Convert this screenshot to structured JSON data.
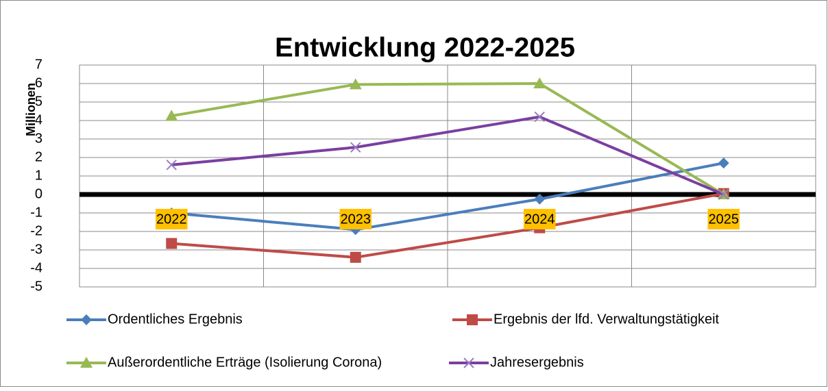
{
  "chart_data": {
    "type": "line",
    "title": "Entwicklung 2022-2025",
    "y_label": "Millionen",
    "categories": [
      "2022",
      "2023",
      "2024",
      "2025"
    ],
    "series": [
      {
        "name": "Ordentliches Ergebnis",
        "color": "#4a7ebb",
        "marker": "diamond",
        "values": [
          -1.0,
          -1.9,
          -0.25,
          1.7
        ]
      },
      {
        "name": "Ergebnis der lfd. Verwaltungstätigkeit",
        "color": "#be4b48",
        "marker": "square",
        "values": [
          -2.65,
          -3.4,
          -1.8,
          0.05
        ]
      },
      {
        "name": "Außerordentliche Erträge (Isolierung Corona)",
        "color": "#98b954",
        "marker": "triangle",
        "values": [
          4.25,
          5.95,
          6.0,
          0.0
        ]
      },
      {
        "name": "Jahresergebnis",
        "color": "#7b3fa0",
        "marker": "x",
        "values": [
          1.6,
          2.55,
          4.2,
          0.0
        ]
      }
    ],
    "ylim": [
      -5,
      7
    ],
    "yticks": [
      -5,
      -4,
      -3,
      -2,
      -1,
      0,
      1,
      2,
      3,
      4,
      5,
      6,
      7
    ],
    "grid": true
  }
}
